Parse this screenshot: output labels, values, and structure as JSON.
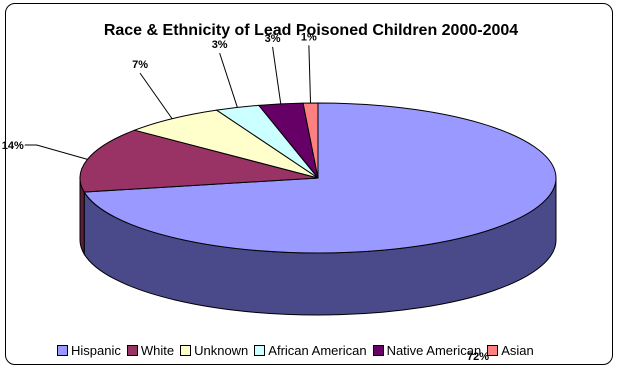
{
  "chart_data": {
    "type": "pie",
    "title": "Race & Ethnicity of Lead Poisoned Children 2000-2004",
    "categories": [
      "Hispanic",
      "White",
      "Unknown",
      "African American",
      "Native American",
      "Asian"
    ],
    "values": [
      72,
      14,
      7,
      3,
      3,
      1
    ],
    "labels": [
      "72%",
      "14%",
      "7%",
      "3%",
      "3%",
      "1%"
    ],
    "colors": [
      "#9999ff",
      "#993366",
      "#ffffcc",
      "#ccffff",
      "#660066",
      "#ff8080"
    ],
    "side_colors": [
      "#4a4a8a",
      "#5c1e3d",
      "#9a9a7a",
      "#7a9a9a",
      "#3d003d",
      "#9a4d4d"
    ],
    "legend_position": "bottom",
    "three_d": true
  }
}
